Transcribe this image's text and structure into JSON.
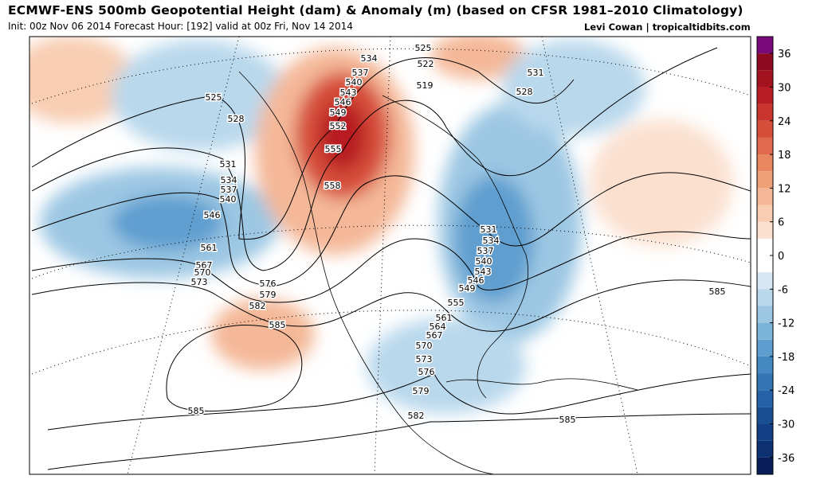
{
  "header": {
    "title": "ECMWF-ENS 500mb Geopotential Height (dam) & Anomaly (m) (based on CFSR 1981–2010 Climatology)",
    "subtitle": "Init: 00z Nov 06 2014 Forecast Hour: [192] valid at 00z Fri, Nov 14 2014",
    "credit": "Levi Cowan | tropicaltidbits.com"
  },
  "colorbar": {
    "levels": [
      -39,
      -36,
      -33,
      -30,
      -27,
      -24,
      -21,
      -18,
      -15,
      -12,
      -9,
      -6,
      -3,
      0,
      3,
      6,
      9,
      12,
      15,
      18,
      21,
      24,
      27,
      30,
      33,
      36,
      39
    ],
    "colors": [
      "#0a1f5a",
      "#0d3070",
      "#123f85",
      "#1a4f96",
      "#2561a6",
      "#3374b5",
      "#4589c3",
      "#5e9ecf",
      "#7cb3d9",
      "#9cc7e3",
      "#b9d8ec",
      "#d6e8f3",
      "#ffffff",
      "#ffffff",
      "#fbe0cf",
      "#f8cdb2",
      "#f4b898",
      "#efa077",
      "#e8865f",
      "#e06a4e",
      "#d64d3a",
      "#c9342c",
      "#b81c24",
      "#a3121f",
      "#8b0a1e",
      "#7a0a7a"
    ],
    "ticks": [
      36,
      30,
      24,
      18,
      12,
      6,
      0,
      -6,
      -12,
      -18,
      -24,
      -30,
      -36
    ]
  },
  "contour_labels": [
    "525",
    "528",
    "531",
    "534",
    "537",
    "540",
    "546",
    "561",
    "567",
    "570",
    "573",
    "576",
    "579",
    "582",
    "585",
    "585",
    "534",
    "537",
    "540",
    "543",
    "546",
    "549",
    "552",
    "555",
    "558",
    "525",
    "522",
    "519",
    "531",
    "528",
    "531",
    "534",
    "537",
    "540",
    "543",
    "546",
    "549",
    "555",
    "561",
    "564",
    "567",
    "570",
    "573",
    "576",
    "579",
    "582",
    "585",
    "585"
  ]
}
